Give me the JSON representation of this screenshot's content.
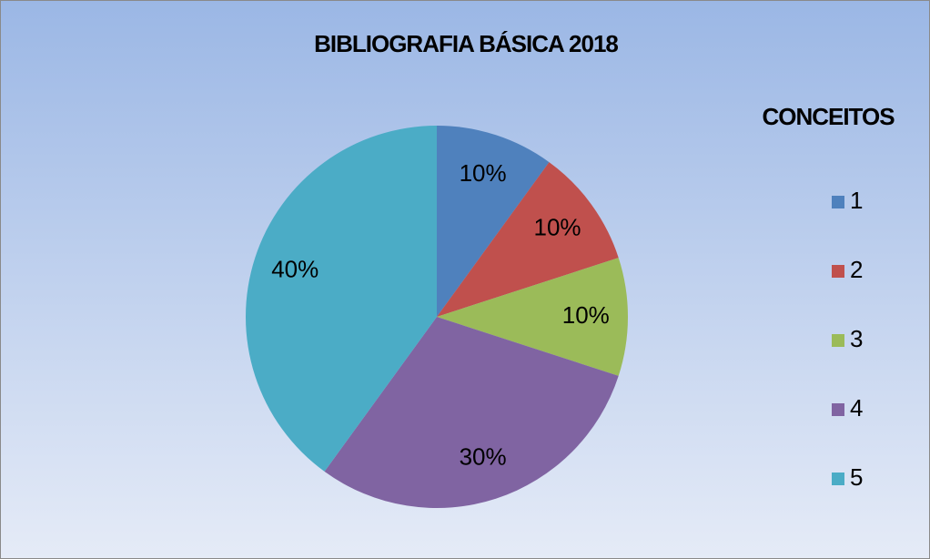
{
  "chart_data": {
    "type": "pie",
    "title": "BIBLIOGRAFIA BÁSICA 2018",
    "legend_title": "CONCEITOS",
    "categories": [
      "1",
      "2",
      "3",
      "4",
      "5"
    ],
    "values": [
      10,
      10,
      10,
      30,
      40
    ],
    "value_labels": [
      "10%",
      "10%",
      "10%",
      "30%",
      "40%"
    ],
    "colors": [
      "#4f81bd",
      "#c0504d",
      "#9bbb59",
      "#8064a2",
      "#4bacc6"
    ],
    "legend": "right"
  }
}
